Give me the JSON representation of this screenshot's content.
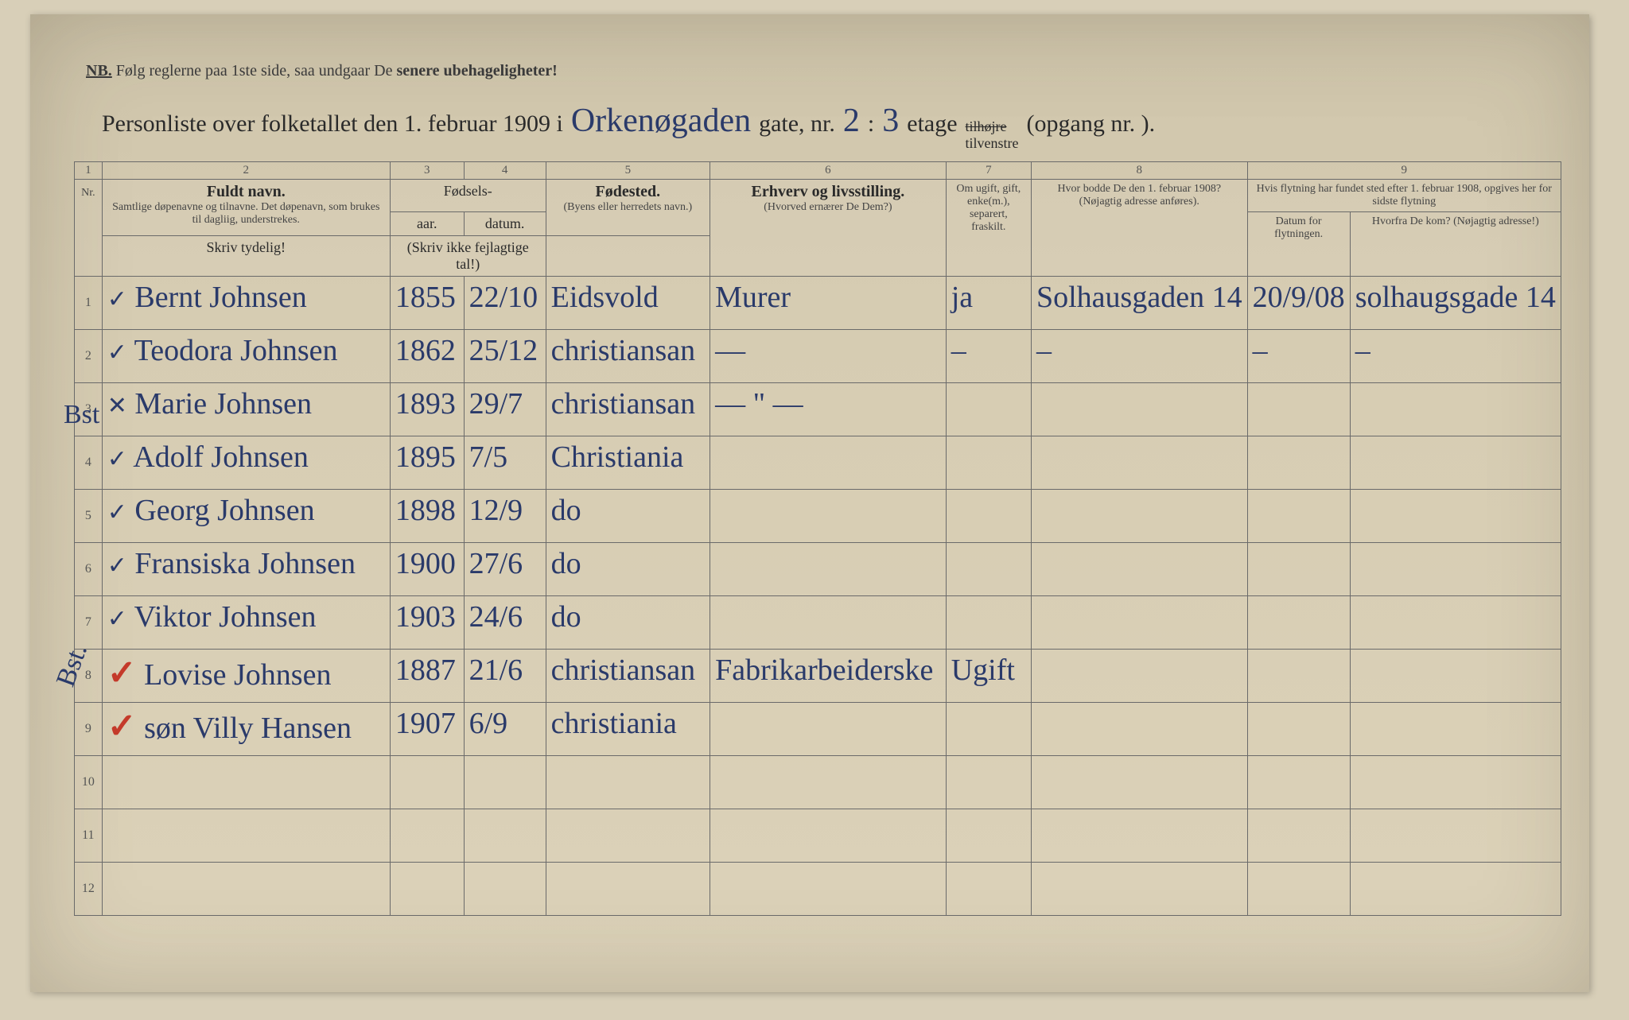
{
  "colors": {
    "page_bg": "#d6ccb2",
    "ink_print": "#2a2a2a",
    "ink_hand": "#2a3a6a",
    "ink_red": "#c43a2a",
    "rule": "#6a6a6a"
  },
  "nb": {
    "prefix": "NB.",
    "text_plain": "Følg reglerne paa 1ste side, saa undgaar De ",
    "text_bold": "senere ubehageligheter!"
  },
  "title": {
    "part1": "Personliste over folketallet den 1. februar 1909 i",
    "street_hand": "Orkenøgaden",
    "gate_label": "gate, nr.",
    "gate_nr": "2",
    "colon": ":",
    "etage_nr": "3",
    "etage_label": "etage",
    "side_struck": "tilhøjre",
    "side_kept": "tilvenstre",
    "opgang": "(opgang nr.        )."
  },
  "columns": {
    "numbers": [
      "1",
      "2",
      "3",
      "4",
      "5",
      "6",
      "7",
      "8",
      "9"
    ],
    "c2_main": "Fuldt navn.",
    "c2_sub": "Samtlige døpenavne og tilnavne. Det døpenavn, som brukes til dagliig, understrekes.",
    "c34_group": "Fødsels-",
    "c3": "aar.",
    "c4": "datum.",
    "c34_sub": "(Skriv ikke fejlagtige tal!)",
    "c5_main": "Fødested.",
    "c5_sub": "(Byens eller herredets navn.)",
    "c6_main": "Erhverv og livsstilling.",
    "c6_sub": "(Hvorved ernærer De Dem?)",
    "c7": "Om ugift, gift, enke(m.), separert, fraskilt.",
    "c8_main": "Hvor bodde De den 1. februar 1908?",
    "c8_sub": "(Nøjagtig adresse anføres).",
    "c9_top": "Hvis flytning har fundet sted efter 1. februar 1908, opgives her for sidste flytning",
    "c9a": "Datum for flytningen.",
    "c9b": "Hvorfra De kom? (Nøjagtig adresse!)",
    "skriv": "Skriv tydelig!"
  },
  "rows": [
    {
      "nr": "1",
      "margin": "✓",
      "name": "Bernt Johnsen",
      "year": "1855",
      "date": "22/10",
      "place": "Eidsvold",
      "occ": "Murer",
      "marital": "ja",
      "addr1908": "Solhausgaden 14",
      "moved": "20/9/08",
      "from": "solhaugsgade 14"
    },
    {
      "nr": "2",
      "margin": "✓",
      "name": "Teodora Johnsen",
      "year": "1862",
      "date": "25/12",
      "place": "christiansan",
      "occ": "—",
      "marital": "–",
      "addr1908": "–",
      "moved": "–",
      "from": "–"
    },
    {
      "nr": "3",
      "margin": "✕",
      "name": "Marie Johnsen",
      "year": "1893",
      "date": "29/7",
      "place": "christiansan",
      "occ": "— \" —",
      "marital": "",
      "addr1908": "",
      "moved": "",
      "from": ""
    },
    {
      "nr": "4",
      "margin": "✓",
      "name": "Adolf Johnsen",
      "year": "1895",
      "date": "7/5",
      "place": "Christiania",
      "occ": "",
      "marital": "",
      "addr1908": "",
      "moved": "",
      "from": ""
    },
    {
      "nr": "5",
      "margin": "✓",
      "name": "Georg Johnsen",
      "year": "1898",
      "date": "12/9",
      "place": "do",
      "occ": "",
      "marital": "",
      "addr1908": "",
      "moved": "",
      "from": ""
    },
    {
      "nr": "6",
      "margin": "✓",
      "name": "Fransiska Johnsen",
      "year": "1900",
      "date": "27/6",
      "place": "do",
      "occ": "",
      "marital": "",
      "addr1908": "",
      "moved": "",
      "from": ""
    },
    {
      "nr": "7",
      "margin": "✓",
      "name": "Viktor Johnsen",
      "year": "1903",
      "date": "24/6",
      "place": "do",
      "occ": "",
      "marital": "",
      "addr1908": "",
      "moved": "",
      "from": ""
    },
    {
      "nr": "8",
      "margin": "",
      "name": "Lovise Johnsen",
      "year": "1887",
      "date": "21/6",
      "place": "christiansan",
      "occ": "Fabrikarbeiderske",
      "marital": "Ugift",
      "addr1908": "",
      "moved": "",
      "from": "",
      "red": true
    },
    {
      "nr": "9",
      "margin": "",
      "name": "søn  Villy Hansen",
      "year": "1907",
      "date": "6/9",
      "place": "christiania",
      "occ": "",
      "marital": "",
      "addr1908": "",
      "moved": "",
      "from": "",
      "red": true
    },
    {
      "nr": "10",
      "margin": "",
      "name": "",
      "year": "",
      "date": "",
      "place": "",
      "occ": "",
      "marital": "",
      "addr1908": "",
      "moved": "",
      "from": ""
    },
    {
      "nr": "11",
      "margin": "",
      "name": "",
      "year": "",
      "date": "",
      "place": "",
      "occ": "",
      "marital": "",
      "addr1908": "",
      "moved": "",
      "from": ""
    },
    {
      "nr": "12",
      "margin": "",
      "name": "",
      "year": "",
      "date": "",
      "place": "",
      "occ": "",
      "marital": "",
      "addr1908": "",
      "moved": "",
      "from": ""
    }
  ],
  "side_annotations": {
    "row3_left": "Bst",
    "row8_left": "Bst."
  }
}
